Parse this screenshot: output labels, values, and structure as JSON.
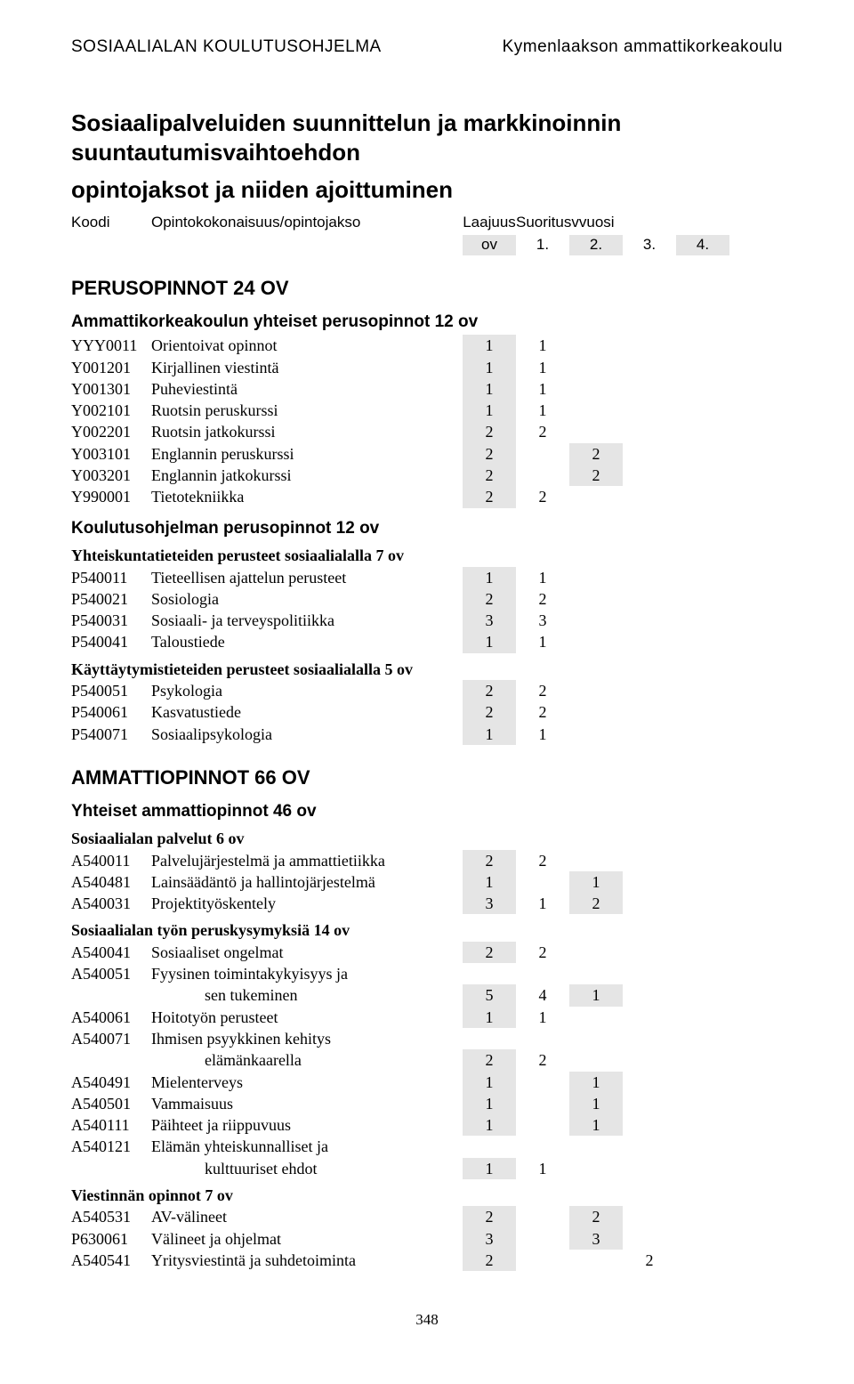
{
  "header": {
    "left": "SOSIAALIALAN KOULUTUSOHJELMA",
    "right": "Kymenlaakson ammattikorkeakoulu"
  },
  "title_line1": "Sosiaalipalveluiden suunnittelun ja markkinoinnin suuntautumisvaihtoehdon",
  "title_line2": "opintojaksot ja niiden ajoittuminen",
  "col": {
    "koodi": "Koodi",
    "opinto": "Opintokokonaisuus/opintojakso",
    "laajuus": "Laajuus",
    "suoritus": "Suoritusvvuosi",
    "ov": "ov",
    "y1": "1.",
    "y2": "2.",
    "y3": "3.",
    "y4": "4."
  },
  "sections": {
    "perus": "PERUSOPINNOT 24 OV",
    "perus_sub1": "Ammattikorkeakoulun yhteiset perusopinnot 12 ov",
    "perus_sub2": "Koulutusohjelman perusopinnot 12 ov",
    "perus_grp1": "Yhteiskuntatieteiden perusteet sosiaalialalla 7 ov",
    "perus_grp2": "Käyttäytymistieteiden perusteet sosiaalialalla 5 ov",
    "ammatti": "AMMATTIOPINNOT 66 OV",
    "ammatti_sub1": "Yhteiset ammattiopinnot 46 ov",
    "ammatti_grp1": "Sosiaalialan palvelut 6 ov",
    "ammatti_grp2": "Sosiaalialan työn peruskysymyksiä 14 ov",
    "ammatti_grp3": "Viestinnän opinnot 7 ov"
  },
  "rows": {
    "r1": {
      "code": "YYY0011",
      "name": "Orientoivat opinnot",
      "ov": "1",
      "y1": "1",
      "y2": "",
      "y3": "",
      "y4": ""
    },
    "r2": {
      "code": "Y001201",
      "name": "Kirjallinen viestintä",
      "ov": "1",
      "y1": "1",
      "y2": "",
      "y3": "",
      "y4": ""
    },
    "r3": {
      "code": "Y001301",
      "name": "Puheviestintä",
      "ov": "1",
      "y1": "1",
      "y2": "",
      "y3": "",
      "y4": ""
    },
    "r4": {
      "code": "Y002101",
      "name": "Ruotsin peruskurssi",
      "ov": "1",
      "y1": "1",
      "y2": "",
      "y3": "",
      "y4": ""
    },
    "r5": {
      "code": "Y002201",
      "name": "Ruotsin jatkokurssi",
      "ov": "2",
      "y1": "2",
      "y2": "",
      "y3": "",
      "y4": ""
    },
    "r6": {
      "code": "Y003101",
      "name": "Englannin peruskurssi",
      "ov": "2",
      "y1": "",
      "y2": "2",
      "y3": "",
      "y4": ""
    },
    "r7": {
      "code": "Y003201",
      "name": "Englannin jatkokurssi",
      "ov": "2",
      "y1": "",
      "y2": "2",
      "y3": "",
      "y4": ""
    },
    "r8": {
      "code": "Y990001",
      "name": "Tietotekniikka",
      "ov": "2",
      "y1": "2",
      "y2": "",
      "y3": "",
      "y4": ""
    },
    "r9": {
      "code": "P540011",
      "name": "Tieteellisen ajattelun perusteet",
      "ov": "1",
      "y1": "1",
      "y2": "",
      "y3": "",
      "y4": ""
    },
    "r10": {
      "code": "P540021",
      "name": "Sosiologia",
      "ov": "2",
      "y1": "2",
      "y2": "",
      "y3": "",
      "y4": ""
    },
    "r11": {
      "code": "P540031",
      "name": "Sosiaali- ja terveyspolitiikka",
      "ov": "3",
      "y1": "3",
      "y2": "",
      "y3": "",
      "y4": ""
    },
    "r12": {
      "code": "P540041",
      "name": "Taloustiede",
      "ov": "1",
      "y1": "1",
      "y2": "",
      "y3": "",
      "y4": ""
    },
    "r13": {
      "code": "P540051",
      "name": "Psykologia",
      "ov": "2",
      "y1": "2",
      "y2": "",
      "y3": "",
      "y4": ""
    },
    "r14": {
      "code": "P540061",
      "name": "Kasvatustiede",
      "ov": "2",
      "y1": "2",
      "y2": "",
      "y3": "",
      "y4": ""
    },
    "r15": {
      "code": "P540071",
      "name": "Sosiaalipsykologia",
      "ov": "1",
      "y1": "1",
      "y2": "",
      "y3": "",
      "y4": ""
    },
    "r16": {
      "code": "A540011",
      "name": "Palvelujärjestelmä ja ammattietiikka",
      "ov": "2",
      "y1": "2",
      "y2": "",
      "y3": "",
      "y4": ""
    },
    "r17": {
      "code": "A540481",
      "name": "Lainsäädäntö ja hallintojärjestelmä",
      "ov": "1",
      "y1": "",
      "y2": "1",
      "y3": "",
      "y4": ""
    },
    "r18": {
      "code": "A540031",
      "name": "Projektityöskentely",
      "ov": "3",
      "y1": "1",
      "y2": "2",
      "y3": "",
      "y4": ""
    },
    "r19": {
      "code": "A540041",
      "name": "Sosiaaliset ongelmat",
      "ov": "2",
      "y1": "2",
      "y2": "",
      "y3": "",
      "y4": ""
    },
    "r20a": {
      "code": "A540051",
      "name": "Fyysinen toimintakykyisyys ja",
      "ov": "",
      "y1": "",
      "y2": "",
      "y3": "",
      "y4": ""
    },
    "r20b": {
      "code": "",
      "name": "sen tukeminen",
      "ov": "5",
      "y1": "4",
      "y2": "1",
      "y3": "",
      "y4": ""
    },
    "r21": {
      "code": "A540061",
      "name": "Hoitotyön perusteet",
      "ov": "1",
      "y1": "1",
      "y2": "",
      "y3": "",
      "y4": ""
    },
    "r22a": {
      "code": "A540071",
      "name": "Ihmisen psyykkinen kehitys",
      "ov": "",
      "y1": "",
      "y2": "",
      "y3": "",
      "y4": ""
    },
    "r22b": {
      "code": "",
      "name": "elämänkaarella",
      "ov": "2",
      "y1": "2",
      "y2": "",
      "y3": "",
      "y4": ""
    },
    "r23": {
      "code": "A540491",
      "name": "Mielenterveys",
      "ov": "1",
      "y1": "",
      "y2": "1",
      "y3": "",
      "y4": ""
    },
    "r24": {
      "code": "A540501",
      "name": "Vammaisuus",
      "ov": "1",
      "y1": "",
      "y2": "1",
      "y3": "",
      "y4": ""
    },
    "r25": {
      "code": "A540111",
      "name": "Päihteet ja riippuvuus",
      "ov": "1",
      "y1": "",
      "y2": "1",
      "y3": "",
      "y4": ""
    },
    "r26a": {
      "code": "A540121",
      "name": "Elämän yhteiskunnalliset ja",
      "ov": "",
      "y1": "",
      "y2": "",
      "y3": "",
      "y4": ""
    },
    "r26b": {
      "code": "",
      "name": "kulttuuriset ehdot",
      "ov": "1",
      "y1": "1",
      "y2": "",
      "y3": "",
      "y4": ""
    },
    "r27": {
      "code": "A540531",
      "name": "AV-välineet",
      "ov": "2",
      "y1": "",
      "y2": "2",
      "y3": "",
      "y4": ""
    },
    "r28": {
      "code": "P630061",
      "name": "Välineet ja ohjelmat",
      "ov": "3",
      "y1": "",
      "y2": "3",
      "y3": "",
      "y4": ""
    },
    "r29": {
      "code": "A540541",
      "name": "Yritysviestintä ja suhdetoiminta",
      "ov": "2",
      "y1": "",
      "y2": "",
      "y3": "2",
      "y4": ""
    }
  },
  "page": "348"
}
